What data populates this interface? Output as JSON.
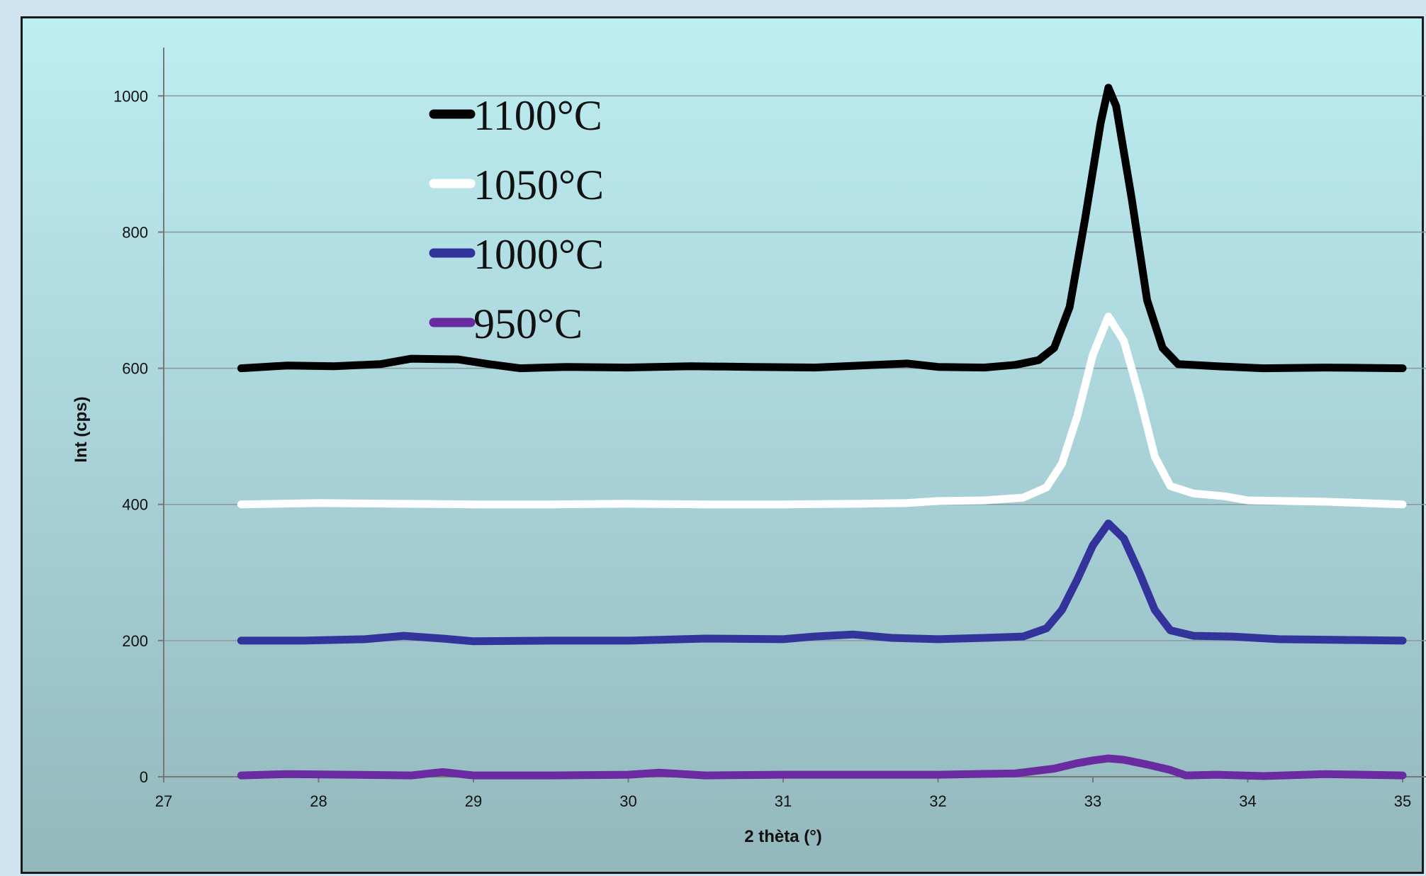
{
  "chart_data": {
    "type": "line",
    "title": "",
    "xlabel": "2 thèta (°)",
    "ylabel": "Int (cps)",
    "xlim": [
      27,
      35
    ],
    "ylim": [
      0,
      1050
    ],
    "x_ticks": [
      27,
      28,
      29,
      30,
      31,
      32,
      33,
      34,
      35
    ],
    "y_ticks": [
      0,
      200,
      400,
      600,
      800,
      1000
    ],
    "grid": "horizontal",
    "legend_position": "top-left",
    "series": [
      {
        "name": "1100°C",
        "color": "#000000",
        "points": [
          [
            27.5,
            600
          ],
          [
            27.8,
            604
          ],
          [
            28.1,
            603
          ],
          [
            28.4,
            606
          ],
          [
            28.6,
            614
          ],
          [
            28.9,
            613
          ],
          [
            29.1,
            606
          ],
          [
            29.3,
            600
          ],
          [
            29.6,
            602
          ],
          [
            30.0,
            601
          ],
          [
            30.4,
            603
          ],
          [
            30.8,
            602
          ],
          [
            31.2,
            601
          ],
          [
            31.5,
            604
          ],
          [
            31.8,
            607
          ],
          [
            32.0,
            602
          ],
          [
            32.3,
            601
          ],
          [
            32.5,
            605
          ],
          [
            32.65,
            612
          ],
          [
            32.75,
            630
          ],
          [
            32.85,
            690
          ],
          [
            32.95,
            820
          ],
          [
            33.05,
            960
          ],
          [
            33.1,
            1012
          ],
          [
            33.15,
            985
          ],
          [
            33.25,
            850
          ],
          [
            33.35,
            700
          ],
          [
            33.45,
            630
          ],
          [
            33.55,
            606
          ],
          [
            33.8,
            603
          ],
          [
            34.1,
            600
          ],
          [
            34.5,
            601
          ],
          [
            35.0,
            600
          ]
        ]
      },
      {
        "name": "1050°C",
        "color": "#ffffff",
        "points": [
          [
            27.5,
            400
          ],
          [
            28.0,
            402
          ],
          [
            28.5,
            401
          ],
          [
            29.0,
            400
          ],
          [
            29.5,
            400
          ],
          [
            30.0,
            401
          ],
          [
            30.5,
            400
          ],
          [
            31.0,
            400
          ],
          [
            31.5,
            401
          ],
          [
            31.8,
            402
          ],
          [
            32.0,
            405
          ],
          [
            32.3,
            406
          ],
          [
            32.55,
            410
          ],
          [
            32.7,
            425
          ],
          [
            32.8,
            460
          ],
          [
            32.9,
            530
          ],
          [
            33.0,
            620
          ],
          [
            33.1,
            676
          ],
          [
            33.2,
            640
          ],
          [
            33.3,
            560
          ],
          [
            33.4,
            470
          ],
          [
            33.5,
            427
          ],
          [
            33.65,
            416
          ],
          [
            33.85,
            412
          ],
          [
            34.0,
            406
          ],
          [
            34.5,
            404
          ],
          [
            35.0,
            400
          ]
        ]
      },
      {
        "name": "1000°C",
        "color": "#33339c",
        "points": [
          [
            27.5,
            200
          ],
          [
            27.9,
            200
          ],
          [
            28.3,
            202
          ],
          [
            28.55,
            207
          ],
          [
            28.8,
            203
          ],
          [
            29.0,
            199
          ],
          [
            29.5,
            200
          ],
          [
            30.0,
            200
          ],
          [
            30.5,
            203
          ],
          [
            31.0,
            202
          ],
          [
            31.2,
            206
          ],
          [
            31.45,
            209
          ],
          [
            31.7,
            204
          ],
          [
            32.0,
            202
          ],
          [
            32.3,
            204
          ],
          [
            32.55,
            206
          ],
          [
            32.7,
            218
          ],
          [
            32.8,
            245
          ],
          [
            32.9,
            290
          ],
          [
            33.0,
            340
          ],
          [
            33.1,
            372
          ],
          [
            33.2,
            350
          ],
          [
            33.3,
            300
          ],
          [
            33.4,
            245
          ],
          [
            33.5,
            215
          ],
          [
            33.65,
            207
          ],
          [
            33.9,
            206
          ],
          [
            34.2,
            202
          ],
          [
            34.6,
            201
          ],
          [
            35.0,
            200
          ]
        ]
      },
      {
        "name": "950°C",
        "color": "#6a2aa0",
        "points": [
          [
            27.5,
            2
          ],
          [
            27.8,
            4
          ],
          [
            28.2,
            3
          ],
          [
            28.6,
            2
          ],
          [
            28.8,
            7
          ],
          [
            29.0,
            2
          ],
          [
            29.5,
            2
          ],
          [
            30.0,
            3
          ],
          [
            30.2,
            6
          ],
          [
            30.5,
            2
          ],
          [
            31.0,
            3
          ],
          [
            31.5,
            3
          ],
          [
            32.0,
            3
          ],
          [
            32.5,
            5
          ],
          [
            32.75,
            12
          ],
          [
            32.9,
            20
          ],
          [
            33.0,
            24
          ],
          [
            33.1,
            27
          ],
          [
            33.2,
            25
          ],
          [
            33.35,
            18
          ],
          [
            33.5,
            10
          ],
          [
            33.6,
            2
          ],
          [
            33.8,
            3
          ],
          [
            34.1,
            1
          ],
          [
            34.5,
            4
          ],
          [
            35.0,
            2
          ]
        ]
      }
    ]
  }
}
